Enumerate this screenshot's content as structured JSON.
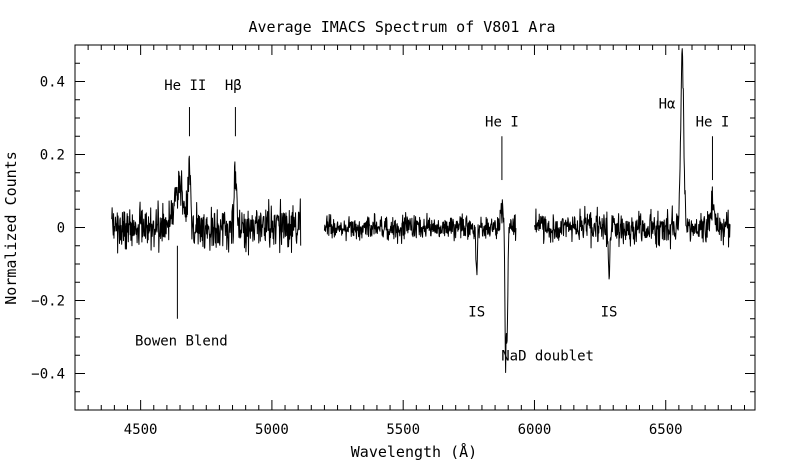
{
  "chart_data": {
    "type": "line",
    "title": "Average IMACS Spectrum of V801 Ara",
    "xlabel": "Wavelength (Å)",
    "ylabel": "Normalized Counts",
    "xlim": [
      4250,
      6840
    ],
    "ylim": [
      -0.5,
      0.5
    ],
    "x_major_ticks": [
      4500,
      5000,
      5500,
      6000,
      6500
    ],
    "x_minor_step": 50,
    "y_major_ticks": [
      -0.4,
      -0.2,
      0,
      0.2,
      0.4
    ],
    "y_minor_step": 0.05,
    "x_tick_labels": [
      "4500",
      "5000",
      "5500",
      "6000",
      "6500"
    ],
    "y_tick_labels": [
      "−0.4",
      "−0.2",
      "0",
      "0.2",
      "0.4"
    ],
    "segments": [
      {
        "start": 4390,
        "end": 5110,
        "noise": 0.03
      },
      {
        "start": 5200,
        "end": 5930,
        "noise": 0.016
      },
      {
        "start": 6000,
        "end": 6745,
        "noise": 0.022
      }
    ],
    "features": [
      {
        "center": 4645,
        "amp": 0.1,
        "width": 22
      },
      {
        "center": 4686,
        "amp": 0.17,
        "width": 5
      },
      {
        "center": 4861,
        "amp": 0.17,
        "width": 5
      },
      {
        "center": 5780,
        "amp": -0.11,
        "width": 3
      },
      {
        "center": 5876,
        "amp": 0.05,
        "width": 6
      },
      {
        "center": 5890,
        "amp": -0.36,
        "width": 2.5
      },
      {
        "center": 5896,
        "amp": -0.27,
        "width": 2.5
      },
      {
        "center": 6284,
        "amp": -0.14,
        "width": 3
      },
      {
        "center": 6563,
        "amp": 0.46,
        "width": 6
      },
      {
        "center": 6678,
        "amp": 0.07,
        "width": 7
      }
    ],
    "annotations": [
      {
        "text": "He II",
        "tick_x": 4686,
        "tick_y1": 0.25,
        "tick_y2": 0.33,
        "text_x": 4670,
        "text_y": 0.39
      },
      {
        "text": "Hβ",
        "tick_x": 4861,
        "tick_y1": 0.25,
        "tick_y2": 0.33,
        "text_x": 4853,
        "text_y": 0.39
      },
      {
        "text": "He I",
        "tick_x": 5876,
        "tick_y1": 0.13,
        "tick_y2": 0.25,
        "text_x": 5876,
        "text_y": 0.29
      },
      {
        "text": "Hα",
        "tick_x": null,
        "tick_y1": null,
        "tick_y2": null,
        "text_x": 6505,
        "text_y": 0.34
      },
      {
        "text": "He I",
        "tick_x": 6678,
        "tick_y1": 0.13,
        "tick_y2": 0.25,
        "text_x": 6678,
        "text_y": 0.29
      },
      {
        "text": "Bowen Blend",
        "tick_x": 4640,
        "tick_y1": -0.05,
        "tick_y2": -0.25,
        "text_x": 4655,
        "text_y": -0.31
      },
      {
        "text": "IS",
        "tick_x": null,
        "tick_y1": null,
        "tick_y2": null,
        "text_x": 5780,
        "text_y": -0.23
      },
      {
        "text": "IS",
        "tick_x": null,
        "tick_y1": null,
        "tick_y2": null,
        "text_x": 6284,
        "text_y": -0.23
      },
      {
        "text": "NaD doublet",
        "tick_x": null,
        "tick_y1": null,
        "tick_y2": null,
        "text_x": 6050,
        "text_y": -0.35
      }
    ]
  }
}
